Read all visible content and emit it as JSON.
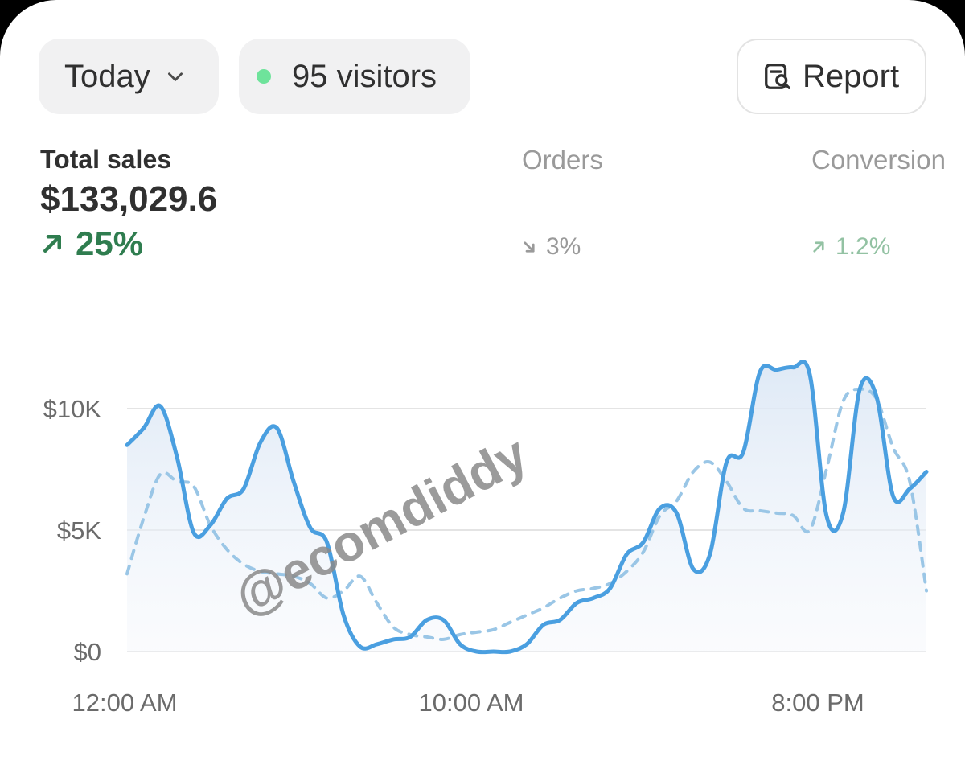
{
  "header": {
    "date_filter": {
      "label": "Today",
      "icon": "chevron-down-icon"
    },
    "live_visitors": {
      "label": "95 visitors",
      "status_color": "#6ee39b"
    },
    "report_button": {
      "label": "Report",
      "icon": "report-search-icon"
    }
  },
  "metrics": {
    "total_sales": {
      "label": "Total sales",
      "value": "$133,029.6",
      "delta": "25%",
      "direction": "up",
      "color": "#2f7d4f"
    },
    "orders": {
      "label": "Orders",
      "delta": "3%",
      "direction": "down"
    },
    "conversion": {
      "label": "Conversion",
      "delta": "1.2%",
      "direction": "up"
    }
  },
  "watermark": "@ecomdiddy",
  "chart_data": {
    "type": "line",
    "x_tick_labels": [
      "12:00 AM",
      "10:00 AM",
      "8:00 PM"
    ],
    "y_tick_labels": [
      "$10K",
      "$5K",
      "$0"
    ],
    "ylim": [
      0,
      12000
    ],
    "y_ticks": [
      0,
      5000,
      10000
    ],
    "grid": true,
    "series": [
      {
        "style": "solid",
        "color": "#4a9fe0",
        "x": [
          0,
          0.5,
          1,
          1.5,
          2,
          2.5,
          3,
          3.5,
          4,
          4.5,
          5,
          5.5,
          6,
          6.5,
          7,
          7.5,
          8,
          8.5,
          9,
          9.5,
          10,
          10.5,
          11,
          11.5,
          12,
          12.5,
          13,
          13.5,
          14,
          14.5,
          15,
          15.5,
          16,
          16.5,
          17,
          17.5,
          18,
          18.5,
          19,
          19.5,
          20,
          20.5,
          21,
          21.5,
          22,
          22.5,
          23,
          23.5,
          24
        ],
        "values": [
          8500,
          9200,
          10100,
          8000,
          4900,
          5200,
          6300,
          6700,
          8600,
          9200,
          7000,
          5100,
          4500,
          1500,
          200,
          300,
          500,
          600,
          1300,
          1300,
          300,
          0,
          0,
          0,
          300,
          1100,
          1300,
          2000,
          2200,
          2600,
          4000,
          4500,
          5900,
          5700,
          3400,
          4000,
          7800,
          8200,
          11500,
          11600,
          11700,
          11400,
          5600,
          5700,
          10800,
          10500,
          6400,
          6700,
          7400
        ]
      },
      {
        "style": "dashed",
        "color": "#9ac6e6",
        "x": [
          0,
          0.5,
          1,
          1.5,
          2,
          2.5,
          3,
          3.5,
          4,
          4.5,
          5,
          5.5,
          6,
          6.5,
          7,
          7.5,
          8,
          8.5,
          9,
          9.5,
          10,
          10.5,
          11,
          11.5,
          12,
          12.5,
          13,
          13.5,
          14,
          14.5,
          15,
          15.5,
          16,
          16.5,
          17,
          17.5,
          18,
          18.5,
          19,
          19.5,
          20,
          20.5,
          21,
          21.5,
          22,
          22.5,
          23,
          23.5,
          24
        ],
        "values": [
          3200,
          5500,
          7300,
          7000,
          6800,
          5200,
          4200,
          3600,
          3300,
          3200,
          3100,
          2800,
          2200,
          2500,
          3100,
          2000,
          1000,
          700,
          600,
          500,
          700,
          800,
          900,
          1200,
          1500,
          1800,
          2200,
          2500,
          2600,
          2800,
          3300,
          4100,
          5600,
          6200,
          7400,
          7800,
          7000,
          5900,
          5800,
          5700,
          5600,
          5000,
          7500,
          10300,
          10800,
          10400,
          8400,
          7000,
          2500
        ]
      }
    ]
  }
}
